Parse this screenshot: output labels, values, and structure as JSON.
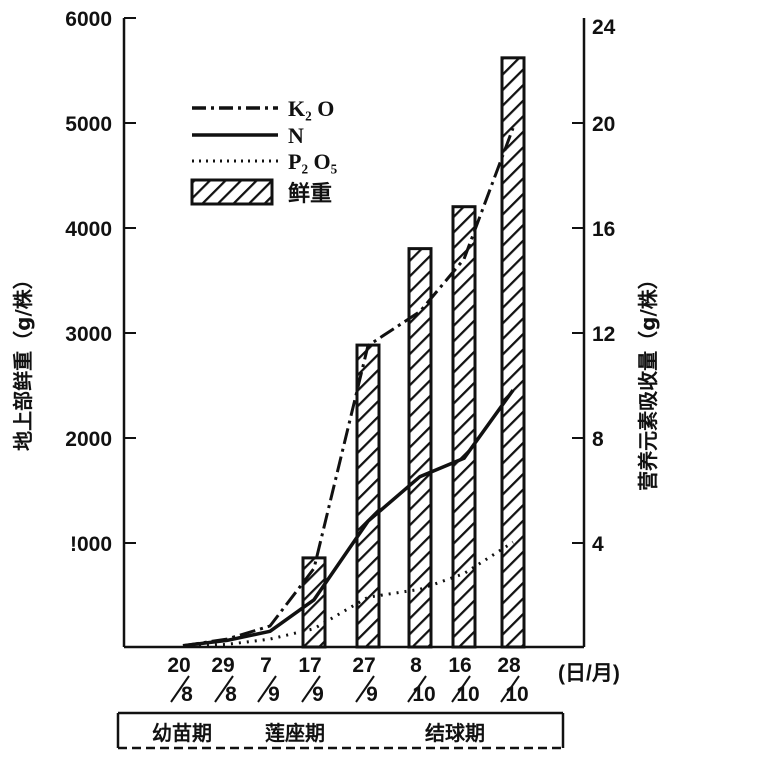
{
  "chart_data": {
    "type": "bar+line",
    "x_tick_labels": [
      {
        "top": "20",
        "bottom": "8"
      },
      {
        "top": "29",
        "bottom": "8"
      },
      {
        "top": "7",
        "bottom": "9"
      },
      {
        "top": "17",
        "bottom": "9"
      },
      {
        "top": "27",
        "bottom": "9"
      },
      {
        "top": "8",
        "bottom": "10"
      },
      {
        "top": "16",
        "bottom": "10"
      },
      {
        "top": "28",
        "bottom": "10"
      }
    ],
    "x_unit_label": "(日/月)",
    "y_left": {
      "label": "地上部鲜重（g/株）",
      "ticks": [
        "6000",
        "5000",
        "4000",
        "3000",
        "2000",
        "!000"
      ],
      "range": [
        0,
        6000
      ]
    },
    "y_right": {
      "label": "营养元素吸收量（g/株）",
      "ticks": [
        "24",
        "20",
        "16",
        "12",
        "8",
        "4"
      ],
      "range": [
        0,
        24
      ]
    },
    "bars": {
      "name": "鲜重",
      "axis": "left",
      "points": [
        {
          "x_index": 3,
          "value": 850
        },
        {
          "x_index": 4,
          "value": 2880
        },
        {
          "x_index": 5,
          "value": 3800
        },
        {
          "x_index": 6,
          "value": 4200
        },
        {
          "x_index": 7,
          "value": 5620
        }
      ]
    },
    "series": [
      {
        "name": "K₂ O",
        "style": "dash-dot",
        "axis": "right",
        "values": [
          0.05,
          0.3,
          0.8,
          3.0,
          11.5,
          12.8,
          14.8,
          19.8
        ]
      },
      {
        "name": "N",
        "style": "solid",
        "axis": "right",
        "values": [
          0.05,
          0.25,
          0.6,
          1.8,
          4.8,
          6.5,
          7.2,
          9.8
        ]
      },
      {
        "name": "P₂ O₅",
        "style": "dotted",
        "axis": "right",
        "values": [
          0.02,
          0.1,
          0.3,
          0.7,
          1.9,
          2.2,
          2.8,
          4.0
        ]
      }
    ],
    "legend": {
      "placement": "top-left",
      "entries": [
        {
          "label": "K₂ O",
          "style": "dash-dot"
        },
        {
          "label": "N",
          "style": "solid"
        },
        {
          "label": "P₂ O₅",
          "style": "dotted"
        },
        {
          "label": "鲜重",
          "style": "hatched-bar"
        }
      ]
    },
    "stages": [
      "幼苗期",
      "莲座期",
      "结球期"
    ],
    "grid": false
  }
}
